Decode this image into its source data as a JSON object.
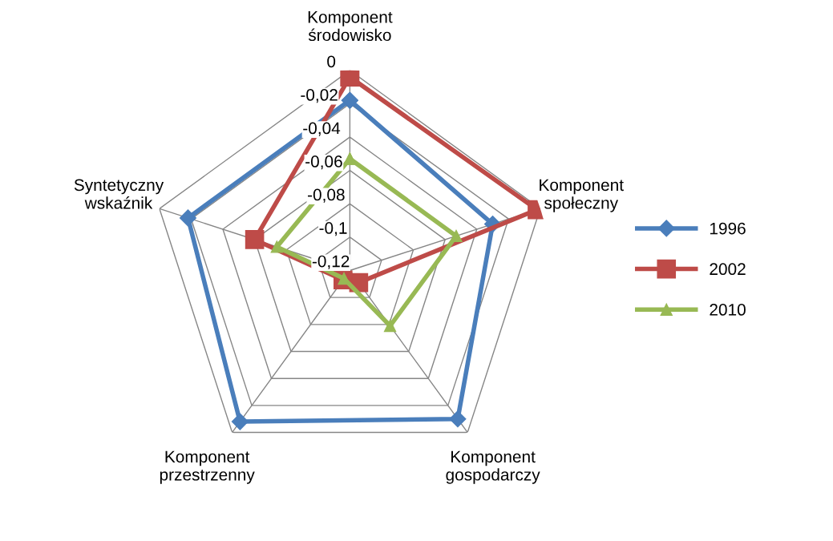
{
  "chart_data": {
    "type": "radar",
    "categories": [
      "Komponent\nśrodowisko",
      "Komponent\nspołeczny",
      "Komponent\ngospodarczy",
      "Komponent\nprzestrzenny",
      "Syntetyczny\nwskaźnik"
    ],
    "series": [
      {
        "name": "1996",
        "color": "#4a7ebb",
        "marker": "diamond",
        "values": [
          -0.018,
          -0.03,
          -0.01,
          -0.008,
          -0.018
        ]
      },
      {
        "name": "2002",
        "color": "#be4b48",
        "marker": "square",
        "values": [
          -0.004,
          -0.002,
          -0.111,
          -0.113,
          -0.06
        ]
      },
      {
        "name": "2010",
        "color": "#98b954",
        "marker": "triangle",
        "values": [
          -0.053,
          -0.053,
          -0.079,
          -0.114,
          -0.074
        ]
      }
    ],
    "ylim": [
      -0.12,
      0
    ],
    "yticks": [
      0,
      {
        "value": -0.02,
        "label": "-0,02"
      },
      {
        "value": -0.04,
        "label": "-0,04"
      },
      {
        "value": -0.06,
        "label": "-0,06"
      },
      {
        "value": -0.08,
        "label": "-0,08"
      },
      {
        "value": -0.1,
        "label": "-0,1"
      },
      {
        "value": -0.12,
        "label": "-0,12"
      }
    ],
    "grid": true,
    "legend": "right"
  }
}
